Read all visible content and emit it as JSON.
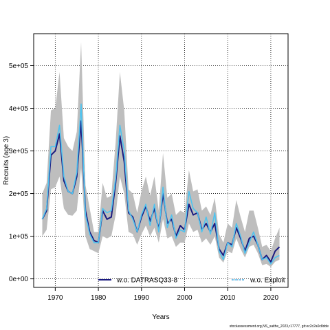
{
  "chart_data": {
    "type": "line",
    "xlabel": "Years",
    "ylabel": "Recruits (age 3)",
    "xlim": [
      1965,
      2024
    ],
    "ylim": [
      -20000,
      575000
    ],
    "x_ticks": [
      1970,
      1980,
      1990,
      2000,
      2010,
      2020
    ],
    "y_ticks": [
      0,
      100000,
      200000,
      300000,
      400000,
      500000
    ],
    "y_tick_labels": [
      "0e+00",
      "1e+05",
      "2e+05",
      "3e+05",
      "4e+05",
      "5e+05"
    ],
    "grid": true,
    "legend_position": "bottom",
    "colors": {
      "band": "#bebebe",
      "series1": "#1a1a80",
      "series2": "#4fc3ef"
    },
    "years": [
      1967,
      1968,
      1969,
      1970,
      1971,
      1972,
      1973,
      1974,
      1975,
      1976,
      1977,
      1978,
      1979,
      1980,
      1981,
      1982,
      1983,
      1984,
      1985,
      1986,
      1987,
      1988,
      1989,
      1990,
      1991,
      1992,
      1993,
      1994,
      1995,
      1996,
      1997,
      1998,
      1999,
      2000,
      2001,
      2002,
      2003,
      2004,
      2005,
      2006,
      2007,
      2008,
      2009,
      2010,
      2011,
      2012,
      2013,
      2014,
      2015,
      2016,
      2017,
      2018,
      2019,
      2020,
      2021,
      2022
    ],
    "band_upper": [
      200000,
      225000,
      395000,
      400000,
      485000,
      330000,
      310000,
      300000,
      345000,
      555000,
      220000,
      165000,
      110000,
      110000,
      225000,
      190000,
      195000,
      320000,
      485000,
      395000,
      210000,
      200000,
      155000,
      205000,
      240000,
      195000,
      240000,
      160000,
      295000,
      190000,
      200000,
      150000,
      160000,
      155000,
      255000,
      205000,
      210000,
      160000,
      170000,
      150000,
      190000,
      105000,
      85000,
      130000,
      120000,
      185000,
      145000,
      110000,
      160000,
      160000,
      120000,
      75000,
      80000,
      65000,
      95000,
      120000
    ],
    "band_lower": [
      100000,
      115000,
      210000,
      215000,
      240000,
      165000,
      150000,
      148000,
      160000,
      260000,
      100000,
      70000,
      65000,
      60000,
      100000,
      95000,
      100000,
      150000,
      240000,
      200000,
      110000,
      105000,
      80000,
      105000,
      125000,
      100000,
      120000,
      85000,
      140000,
      95000,
      100000,
      75000,
      85000,
      85000,
      130000,
      110000,
      115000,
      85000,
      95000,
      80000,
      100000,
      50000,
      38000,
      65000,
      60000,
      95000,
      70000,
      50000,
      75000,
      80000,
      60000,
      32000,
      35000,
      28000,
      40000,
      45000
    ],
    "series": [
      {
        "name": "w.o. DATRASQ33-8",
        "values": [
          140000,
          160000,
          290000,
          300000,
          340000,
          230000,
          205000,
          200000,
          240000,
          370000,
          160000,
          110000,
          90000,
          85000,
          160000,
          140000,
          145000,
          225000,
          335000,
          275000,
          155000,
          145000,
          110000,
          145000,
          170000,
          135000,
          165000,
          115000,
          200000,
          130000,
          140000,
          100000,
          125000,
          115000,
          175000,
          150000,
          155000,
          115000,
          130000,
          110000,
          130000,
          70000,
          55000,
          85000,
          80000,
          120000,
          95000,
          65000,
          95000,
          100000,
          80000,
          45000,
          55000,
          40000,
          65000,
          75000
        ]
      },
      {
        "name": "w.o. Exploit",
        "values": [
          140000,
          165000,
          310000,
          310000,
          360000,
          240000,
          205000,
          200000,
          250000,
          410000,
          150000,
          105000,
          85000,
          85000,
          165000,
          155000,
          160000,
          235000,
          360000,
          300000,
          160000,
          140000,
          110000,
          150000,
          175000,
          125000,
          175000,
          110000,
          215000,
          120000,
          150000,
          95000,
          115000,
          110000,
          205000,
          165000,
          155000,
          110000,
          145000,
          105000,
          155000,
          65000,
          45000,
          85000,
          75000,
          130000,
          100000,
          60000,
          85000,
          110000,
          80000,
          45000,
          50000,
          35000,
          50000,
          55000
        ]
      }
    ]
  },
  "footer_text": "stockassessment.org,NS_saithe_2023,r17777, git:ec2c2a0c8dde"
}
